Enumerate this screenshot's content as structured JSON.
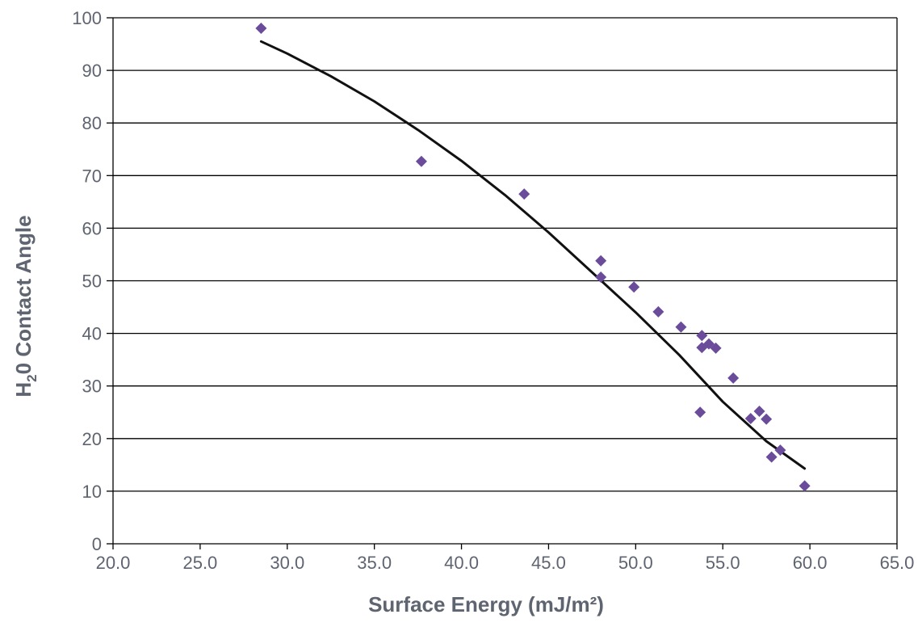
{
  "chart_data": {
    "type": "scatter",
    "xlabel": "Surface Energy (mJ/m²)",
    "ylabel": {
      "prefix": "H",
      "subscript": "2",
      "suffix": "0 Contact Angle"
    },
    "xlim": [
      20.0,
      65.0
    ],
    "ylim": [
      0,
      100
    ],
    "x_ticks": [
      20.0,
      25.0,
      30.0,
      35.0,
      40.0,
      45.0,
      50.0,
      55.0,
      60.0,
      65.0
    ],
    "x_tick_labels": [
      "20.0",
      "25.0",
      "30.0",
      "35.0",
      "40.0",
      "45.0",
      "50.0",
      "55.0",
      "60.0",
      "65.0"
    ],
    "y_ticks": [
      0,
      10,
      20,
      30,
      40,
      50,
      60,
      70,
      80,
      90,
      100
    ],
    "y_tick_labels": [
      "0",
      "10",
      "20",
      "30",
      "40",
      "50",
      "60",
      "70",
      "80",
      "90",
      "100"
    ],
    "grid": {
      "horizontal": true,
      "vertical": false
    },
    "series": [
      {
        "marker": "diamond",
        "color": "#6b4c9a",
        "points": [
          {
            "x": 28.5,
            "y": 98.0
          },
          {
            "x": 37.7,
            "y": 72.7
          },
          {
            "x": 43.6,
            "y": 66.5
          },
          {
            "x": 48.0,
            "y": 53.8
          },
          {
            "x": 48.0,
            "y": 50.7
          },
          {
            "x": 49.9,
            "y": 48.8
          },
          {
            "x": 51.3,
            "y": 44.1
          },
          {
            "x": 52.6,
            "y": 41.2
          },
          {
            "x": 53.8,
            "y": 39.6
          },
          {
            "x": 53.8,
            "y": 37.3
          },
          {
            "x": 54.2,
            "y": 38.0
          },
          {
            "x": 54.6,
            "y": 37.2
          },
          {
            "x": 53.7,
            "y": 25.0
          },
          {
            "x": 55.6,
            "y": 31.5
          },
          {
            "x": 56.6,
            "y": 23.8
          },
          {
            "x": 57.1,
            "y": 25.2
          },
          {
            "x": 57.5,
            "y": 23.7
          },
          {
            "x": 57.8,
            "y": 16.5
          },
          {
            "x": 58.3,
            "y": 17.8
          },
          {
            "x": 59.7,
            "y": 11.0
          }
        ]
      }
    ],
    "trendline": {
      "type": "polynomial",
      "color": "#111111",
      "x": [
        28.5,
        30.0,
        32.5,
        35.0,
        37.5,
        40.0,
        42.5,
        45.0,
        47.5,
        50.0,
        52.5,
        55.0,
        57.5,
        59.7
      ],
      "y": [
        95.5,
        93.2,
        88.9,
        84.1,
        78.7,
        72.8,
        66.3,
        59.2,
        51.6,
        44.0,
        35.9,
        27.0,
        19.5,
        14.3
      ]
    }
  }
}
